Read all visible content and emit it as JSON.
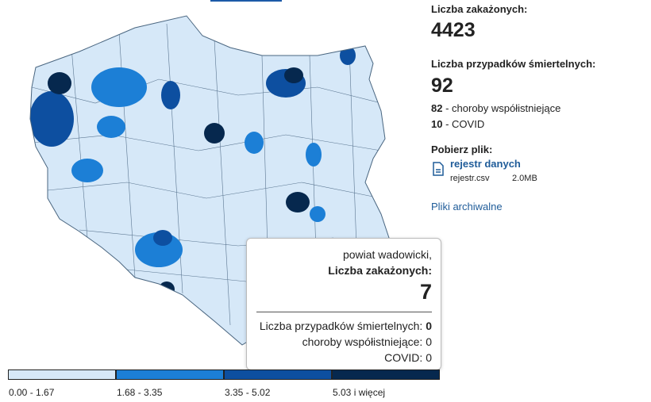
{
  "summary": {
    "infected_label": "Liczba zakażonych:",
    "infected": "4423",
    "deaths_label": "Liczba przypadków śmiertelnych:",
    "deaths": "92",
    "comorbid_count": "82",
    "comorbid_label": "- choroby współistniejące",
    "covid_count": "10",
    "covid_label": "- COVID"
  },
  "download": {
    "title": "Pobierz plik:",
    "link": "rejestr danych",
    "file": "rejestr.csv",
    "size": "2.0MB"
  },
  "archive_link": "Pliki archiwalne",
  "tooltip": {
    "name": "powiat wadowicki,",
    "infected_label": "Liczba zakażonych:",
    "infected": "7",
    "deaths_label": "Liczba przypadków śmiertelnych:",
    "deaths": "0",
    "comorbid_label": "choroby współistniejące:",
    "comorbid": "0",
    "covid_label": "COVID:",
    "covid": "0"
  },
  "legend": [
    {
      "label": "0.00 - 1.67",
      "color": "#d6e8f8"
    },
    {
      "label": "1.68 - 3.35",
      "color": "#1c7fd6"
    },
    {
      "label": "3.35 - 5.02",
      "color": "#0d4fa0"
    },
    {
      "label": "5.03 i więcej",
      "color": "#06284e"
    }
  ]
}
